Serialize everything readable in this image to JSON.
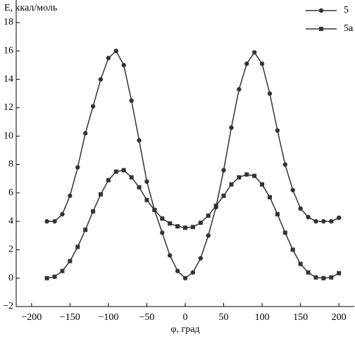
{
  "chart_data": {
    "type": "line",
    "y_label": "E, ккал/моль",
    "x_label": "φ, град",
    "x": [
      -180,
      -170,
      -160,
      -150,
      -140,
      -130,
      -120,
      -110,
      -100,
      -90,
      -80,
      -70,
      -60,
      -50,
      -40,
      -30,
      -20,
      -10,
      0,
      10,
      20,
      30,
      40,
      50,
      60,
      70,
      80,
      90,
      100,
      110,
      120,
      130,
      140,
      150,
      160,
      170,
      180,
      190,
      200
    ],
    "series": [
      {
        "name": "5",
        "color": "#333333",
        "marker": "circle",
        "values": [
          4.0,
          4.0,
          4.5,
          5.8,
          7.8,
          10.2,
          12.1,
          14.0,
          15.5,
          16.0,
          15.0,
          12.5,
          9.7,
          6.8,
          4.8,
          3.2,
          1.6,
          0.5,
          0.0,
          0.4,
          1.4,
          3.0,
          5.0,
          7.6,
          10.6,
          13.3,
          15.1,
          15.9,
          15.1,
          13.0,
          10.4,
          8.0,
          6.2,
          4.9,
          4.3,
          4.0,
          4.0,
          4.0,
          4.25
        ]
      },
      {
        "name": "5a",
        "color": "#333333",
        "marker": "square",
        "values": [
          0.0,
          0.1,
          0.5,
          1.2,
          2.2,
          3.4,
          4.7,
          5.9,
          6.9,
          7.5,
          7.6,
          7.1,
          6.4,
          5.5,
          4.8,
          4.2,
          3.85,
          3.65,
          3.55,
          3.6,
          3.9,
          4.4,
          5.1,
          5.8,
          6.6,
          7.1,
          7.3,
          7.2,
          6.6,
          5.7,
          4.5,
          3.2,
          2.0,
          1.0,
          0.4,
          0.05,
          0.0,
          0.05,
          0.35
        ]
      }
    ],
    "xlim": [
      -220,
      220
    ],
    "xticks": [
      {
        "value": -200,
        "label": "−200"
      },
      {
        "value": -150,
        "label": "−150"
      },
      {
        "value": -100,
        "label": "−100"
      },
      {
        "value": -50,
        "label": "−50"
      },
      0,
      50,
      100,
      150,
      200
    ],
    "ylim": [
      -2,
      18
    ],
    "yticks": [
      {
        "value": -2,
        "label": "−2"
      },
      0,
      2,
      4,
      6,
      8,
      10,
      12,
      14,
      16,
      18
    ],
    "grid": false,
    "legend": "top-right"
  }
}
